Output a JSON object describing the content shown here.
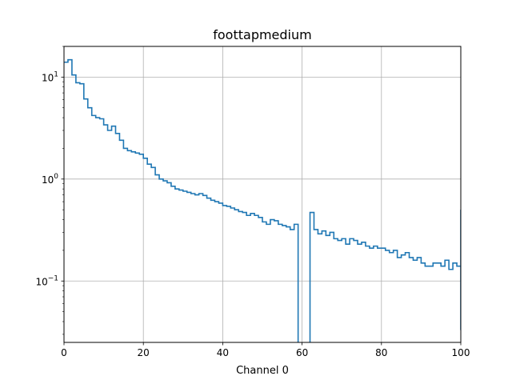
{
  "chart_data": {
    "type": "line",
    "drawstyle": "steps",
    "title": "foottapmedium",
    "xlabel": "Channel 0",
    "ylabel": "",
    "xlim": [
      0,
      100
    ],
    "ylim": [
      0.025,
      20
    ],
    "yscale": "log",
    "grid": true,
    "x_ticks": [
      "0",
      "20",
      "40",
      "60",
      "80",
      "100"
    ],
    "x_tick_values": [
      0,
      20,
      40,
      60,
      80,
      100
    ],
    "y_ticks": [
      {
        "value": 10,
        "base": "10",
        "exp": "1"
      },
      {
        "value": 1,
        "base": "10",
        "exp": "0"
      },
      {
        "value": 0.1,
        "base": "10",
        "exp": "−1"
      }
    ],
    "series": [
      {
        "color": "#1f77b4",
        "bin_width": 1,
        "x_start": 0,
        "values": [
          14.0,
          14.8,
          10.5,
          8.8,
          8.6,
          6.1,
          5.0,
          4.2,
          4.0,
          3.9,
          3.4,
          3.0,
          3.3,
          2.8,
          2.4,
          2.0,
          1.9,
          1.85,
          1.8,
          1.75,
          1.6,
          1.4,
          1.3,
          1.1,
          1.0,
          0.96,
          0.92,
          0.85,
          0.8,
          0.78,
          0.76,
          0.74,
          0.72,
          0.7,
          0.72,
          0.69,
          0.65,
          0.62,
          0.6,
          0.58,
          0.55,
          0.54,
          0.52,
          0.5,
          0.48,
          0.47,
          0.44,
          0.46,
          0.44,
          0.42,
          0.38,
          0.36,
          0.4,
          0.39,
          0.36,
          0.35,
          0.34,
          0.32,
          0.36,
          0.001,
          0.001,
          0.001,
          0.47,
          0.32,
          0.29,
          0.31,
          0.28,
          0.3,
          0.26,
          0.25,
          0.26,
          0.23,
          0.26,
          0.25,
          0.23,
          0.24,
          0.22,
          0.21,
          0.22,
          0.21,
          0.21,
          0.2,
          0.19,
          0.2,
          0.17,
          0.18,
          0.19,
          0.17,
          0.16,
          0.17,
          0.15,
          0.14,
          0.14,
          0.15,
          0.15,
          0.14,
          0.16,
          0.13,
          0.15,
          0.14,
          0.5
        ],
        "edge_spikes": [
          0.06,
          0.5,
          0.033,
          0.32
        ]
      }
    ]
  }
}
